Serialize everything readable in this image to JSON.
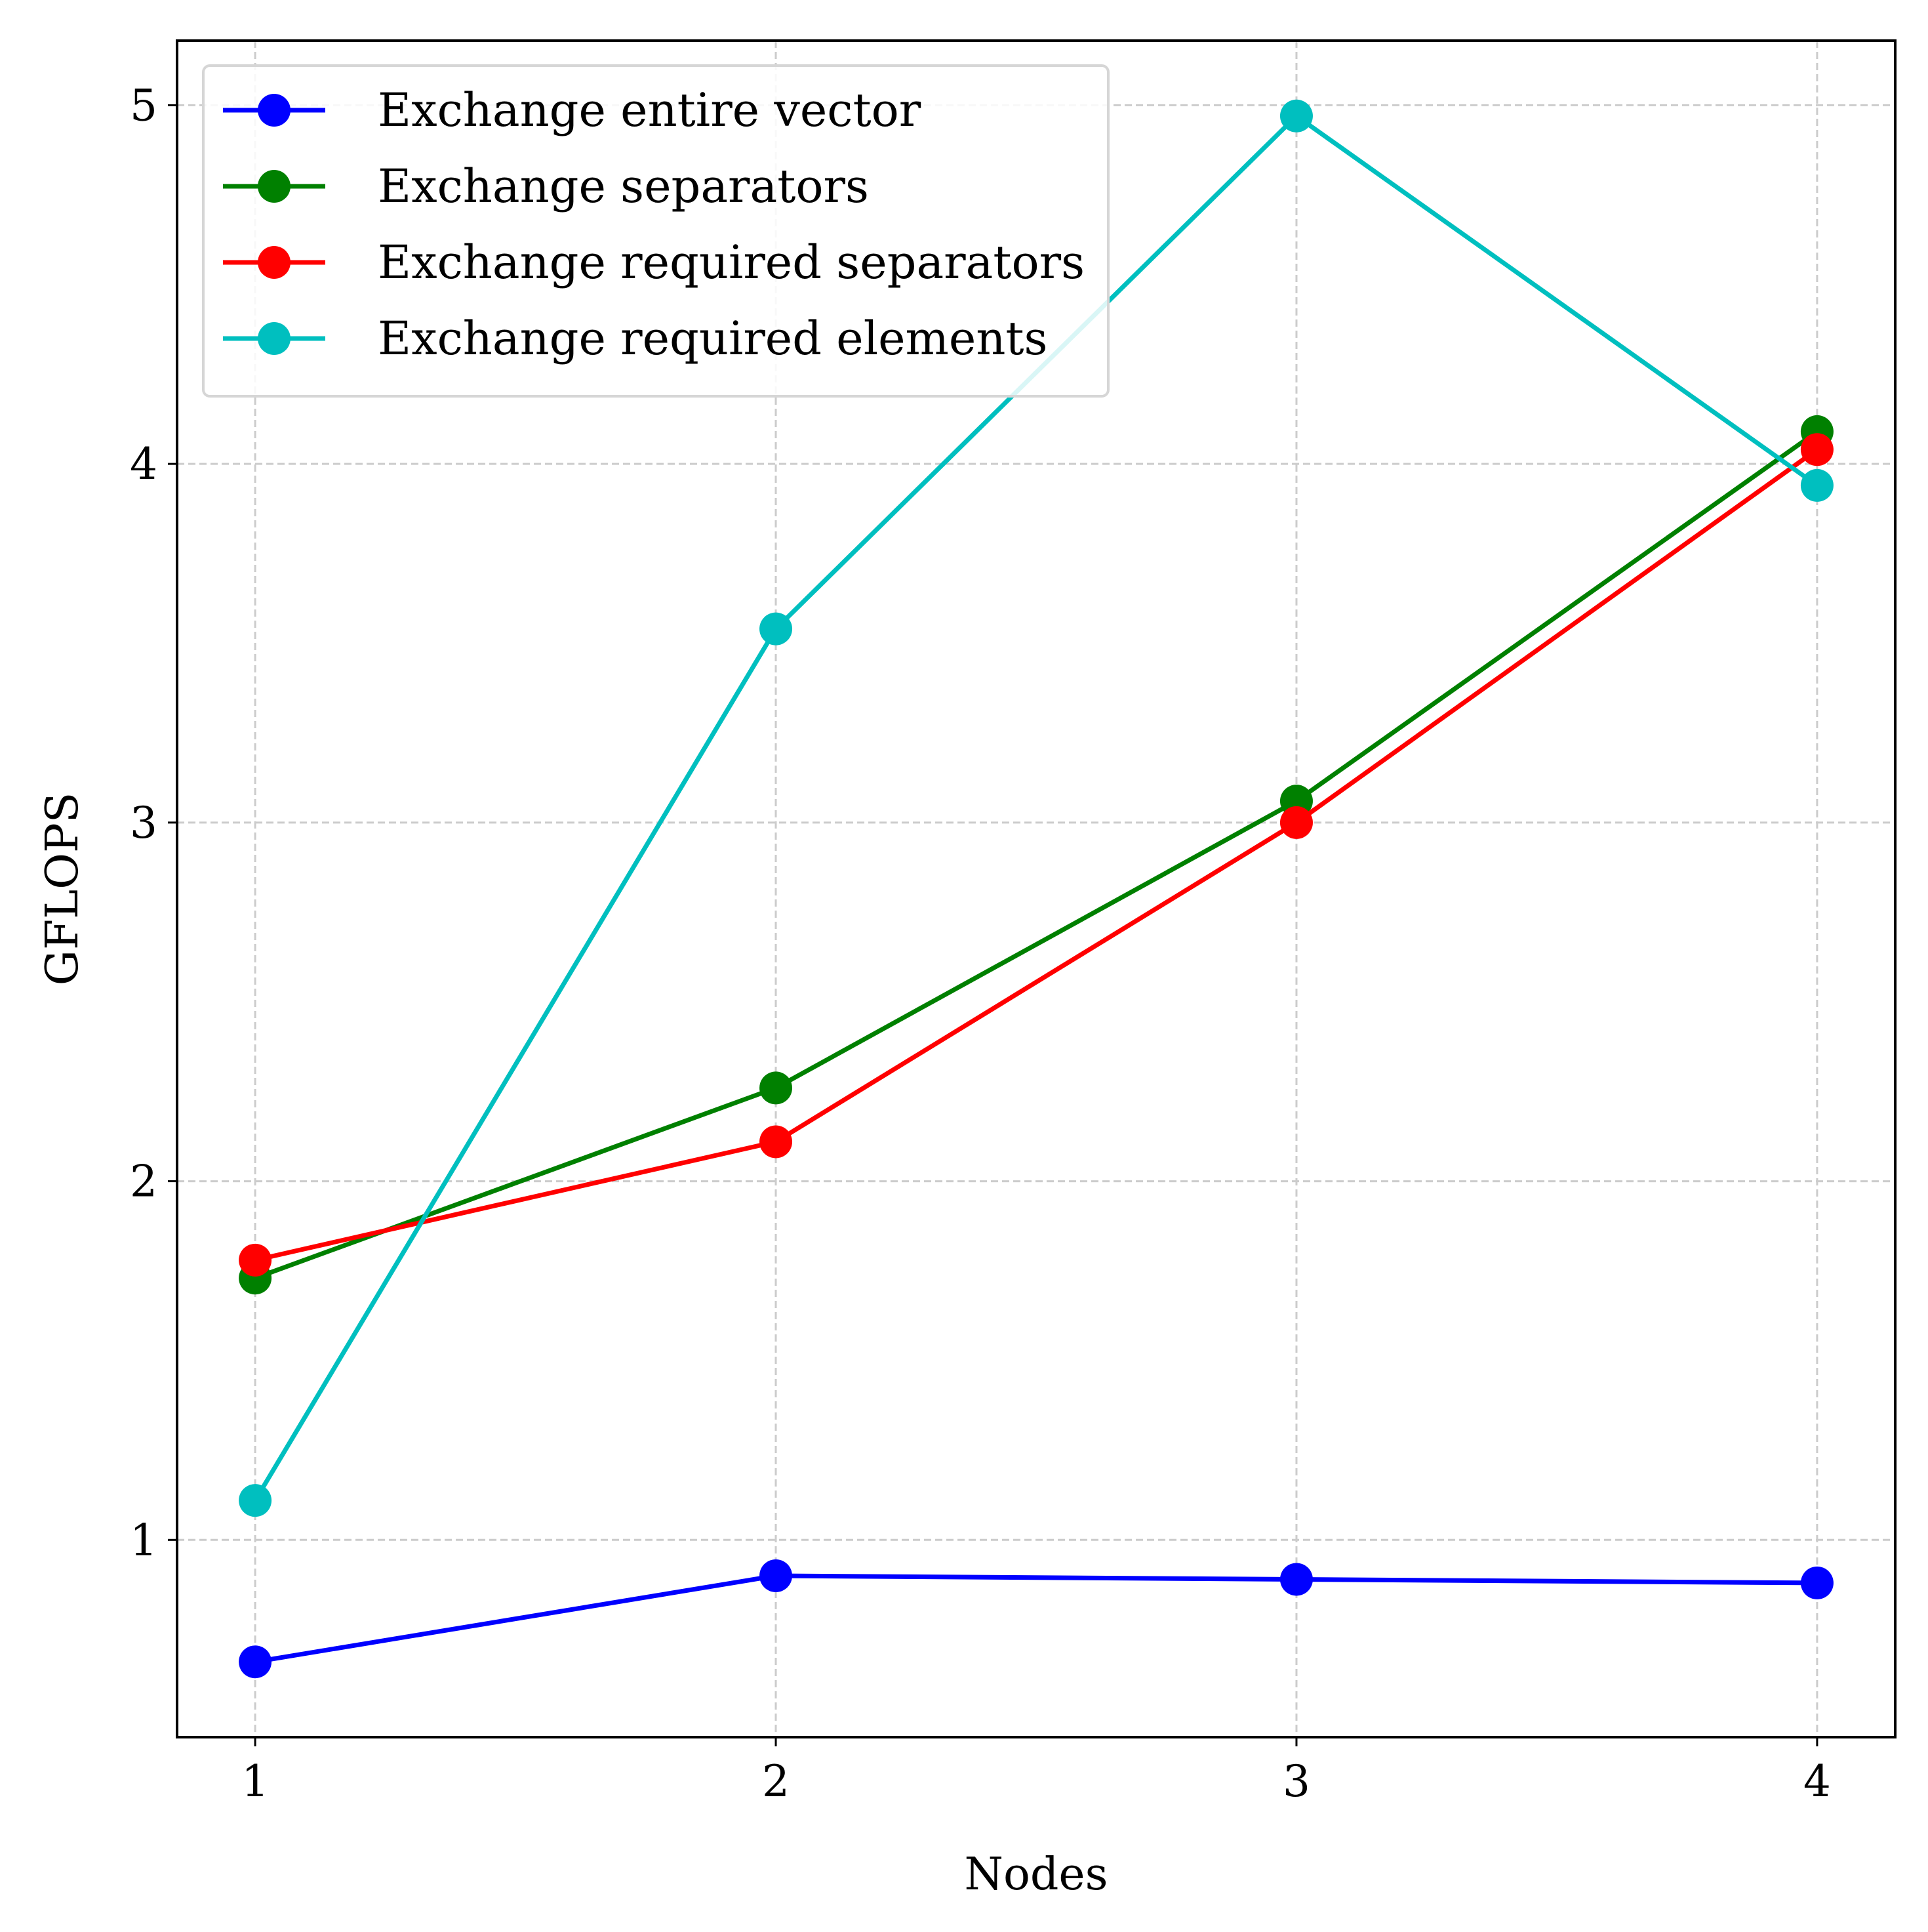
{
  "chart_data": {
    "type": "line",
    "title": "",
    "xlabel": "Nodes",
    "ylabel": "GFLOPS",
    "x": [
      1,
      2,
      3,
      4
    ],
    "xticks": [
      "1",
      "2",
      "3",
      "4"
    ],
    "yticks": [
      "1",
      "2",
      "3",
      "4",
      "5"
    ],
    "xlim": [
      0.85,
      4.15
    ],
    "ylim": [
      0.45,
      5.18
    ],
    "grid": true,
    "legend_position": "top-left",
    "series": [
      {
        "name": "Exchange entire vector",
        "color": "#0000ff",
        "values": [
          0.66,
          0.9,
          0.89,
          0.88
        ]
      },
      {
        "name": "Exchange separators",
        "color": "#008000",
        "values": [
          1.73,
          2.26,
          3.06,
          4.09
        ]
      },
      {
        "name": "Exchange required separators",
        "color": "#ff0000",
        "values": [
          1.78,
          2.11,
          3.0,
          4.04
        ]
      },
      {
        "name": "Exchange required elements",
        "color": "#00bfbf",
        "values": [
          1.11,
          3.54,
          4.97,
          3.94
        ]
      }
    ]
  }
}
